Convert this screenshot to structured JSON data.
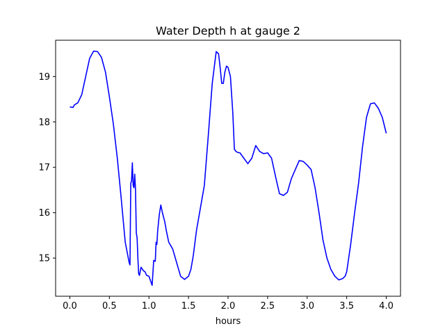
{
  "chart_data": {
    "type": "line",
    "title": "Water Depth h at gauge 2",
    "xlabel": "hours",
    "ylabel": "",
    "xlim": [
      -0.18,
      4.18
    ],
    "ylim": [
      14.16,
      19.8
    ],
    "x_ticks": [
      0.0,
      0.5,
      1.0,
      1.5,
      2.0,
      2.5,
      3.0,
      3.5,
      4.0
    ],
    "x_tick_labels": [
      "0.0",
      "0.5",
      "1.0",
      "1.5",
      "2.0",
      "2.5",
      "3.0",
      "3.5",
      "4.0"
    ],
    "y_ticks": [
      15,
      16,
      17,
      18,
      19
    ],
    "y_tick_labels": [
      "15",
      "16",
      "17",
      "18",
      "19"
    ],
    "grid": false,
    "series": [
      {
        "color": "#0000ff",
        "x": [
          0.0,
          0.04,
          0.06,
          0.1,
          0.15,
          0.2,
          0.25,
          0.3,
          0.35,
          0.4,
          0.45,
          0.5,
          0.55,
          0.6,
          0.65,
          0.7,
          0.75,
          0.76,
          0.77,
          0.78,
          0.79,
          0.8,
          0.81,
          0.82,
          0.83,
          0.84,
          0.85,
          0.86,
          0.87,
          0.88,
          0.9,
          0.93,
          0.95,
          0.97,
          1.0,
          1.02,
          1.04,
          1.06,
          1.08,
          1.09,
          1.1,
          1.11,
          1.13,
          1.15,
          1.17,
          1.2,
          1.22,
          1.25,
          1.3,
          1.35,
          1.4,
          1.45,
          1.5,
          1.53,
          1.56,
          1.6,
          1.65,
          1.7,
          1.75,
          1.8,
          1.85,
          1.88,
          1.9,
          1.92,
          1.94,
          1.96,
          1.98,
          2.0,
          2.03,
          2.06,
          2.08,
          2.1,
          2.12,
          2.15,
          2.2,
          2.25,
          2.3,
          2.35,
          2.4,
          2.45,
          2.5,
          2.55,
          2.6,
          2.65,
          2.7,
          2.75,
          2.8,
          2.85,
          2.9,
          2.95,
          3.0,
          3.05,
          3.1,
          3.15,
          3.2,
          3.25,
          3.3,
          3.35,
          3.4,
          3.45,
          3.48,
          3.5,
          3.55,
          3.6,
          3.65,
          3.7,
          3.75,
          3.8,
          3.85,
          3.9,
          3.95,
          4.0
        ],
        "y": [
          18.33,
          18.32,
          18.38,
          18.42,
          18.6,
          19.0,
          19.4,
          19.56,
          19.55,
          19.42,
          19.1,
          18.55,
          17.95,
          17.2,
          16.3,
          15.35,
          14.9,
          14.85,
          16.65,
          16.7,
          17.1,
          16.6,
          16.55,
          16.85,
          16.5,
          15.55,
          15.45,
          15.0,
          14.65,
          14.62,
          14.8,
          14.72,
          14.7,
          14.62,
          14.6,
          14.5,
          14.4,
          14.95,
          14.93,
          15.35,
          15.3,
          15.6,
          15.95,
          16.17,
          16.0,
          15.8,
          15.6,
          15.35,
          15.2,
          14.9,
          14.6,
          14.53,
          14.6,
          14.75,
          15.05,
          15.6,
          16.1,
          16.6,
          17.7,
          18.85,
          19.55,
          19.5,
          19.2,
          18.85,
          18.85,
          19.1,
          19.23,
          19.2,
          19.0,
          18.2,
          17.4,
          17.35,
          17.33,
          17.32,
          17.2,
          17.08,
          17.2,
          17.48,
          17.35,
          17.3,
          17.32,
          17.2,
          16.8,
          16.42,
          16.38,
          16.45,
          16.75,
          16.95,
          17.15,
          17.13,
          17.05,
          16.95,
          16.55,
          16.0,
          15.4,
          15.0,
          14.75,
          14.6,
          14.52,
          14.55,
          14.6,
          14.7,
          15.3,
          16.0,
          16.65,
          17.45,
          18.1,
          18.4,
          18.42,
          18.3,
          18.1,
          17.75
        ]
      }
    ]
  }
}
